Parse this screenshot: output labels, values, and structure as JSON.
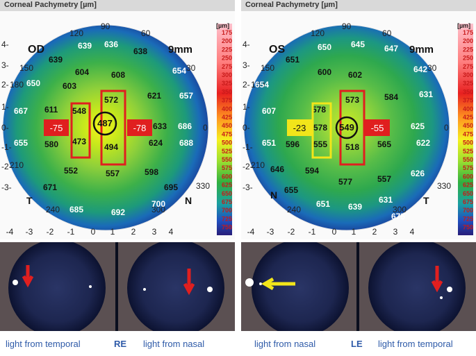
{
  "map_header": "Corneal Pachymetry [µm]",
  "scale": {
    "unit": "[µm]",
    "ticks": [
      "175",
      "200",
      "225",
      "250",
      "275",
      "300",
      "325",
      "350",
      "375",
      "400",
      "425",
      "450",
      "475",
      "500",
      "525",
      "550",
      "575",
      "600",
      "625",
      "650",
      "675",
      "700",
      "725",
      "750"
    ]
  },
  "angle_labels": [
    "90",
    "120",
    "60",
    "150",
    "30",
    "180",
    "0",
    "210",
    "330",
    "240",
    "300"
  ],
  "x_ticks": [
    "-4",
    "-3",
    "-2",
    "-1",
    "0",
    "1",
    "2",
    "3",
    "4"
  ],
  "y_ticks": [
    "4-",
    "3-",
    "2-",
    "1-",
    "0-",
    "-1-",
    "-2-",
    "-3-"
  ],
  "re": {
    "eye": "OD",
    "zone": "9mm",
    "nasal": "N",
    "temporal": "T",
    "center_value": "487",
    "box_left_value": "-75",
    "box_right_value": "-78",
    "values": [
      "639",
      "636",
      "638",
      "639",
      "654",
      "650",
      "604",
      "608",
      "603",
      "621",
      "657",
      "667",
      "611",
      "548",
      "572",
      "633",
      "686",
      "655",
      "580",
      "473",
      "494",
      "624",
      "688",
      "552",
      "557",
      "598",
      "671",
      "695",
      "685",
      "692",
      "700"
    ]
  },
  "le": {
    "eye": "OS",
    "zone": "9mm",
    "nasal": "N",
    "temporal": "T",
    "center_value": "549",
    "box_left_value": "-23",
    "box_right_value": "-55",
    "values": [
      "650",
      "645",
      "647",
      "651",
      "642",
      "654",
      "600",
      "602",
      "631",
      "578",
      "573",
      "584",
      "607",
      "578",
      "625",
      "651",
      "596",
      "555",
      "518",
      "565",
      "622",
      "646",
      "594",
      "577",
      "557",
      "626",
      "655",
      "651",
      "639",
      "631",
      "675"
    ]
  },
  "captions": {
    "re_left": "light from temporal",
    "re_mid": "RE",
    "re_right": "light from nasal",
    "le_left": "light from nasal",
    "le_mid": "LE",
    "le_right": "light from temporal"
  },
  "colors": {
    "caption": "#2e5aa8",
    "red_marker": "#e01f1f",
    "yellow_marker": "#f2e51a"
  }
}
